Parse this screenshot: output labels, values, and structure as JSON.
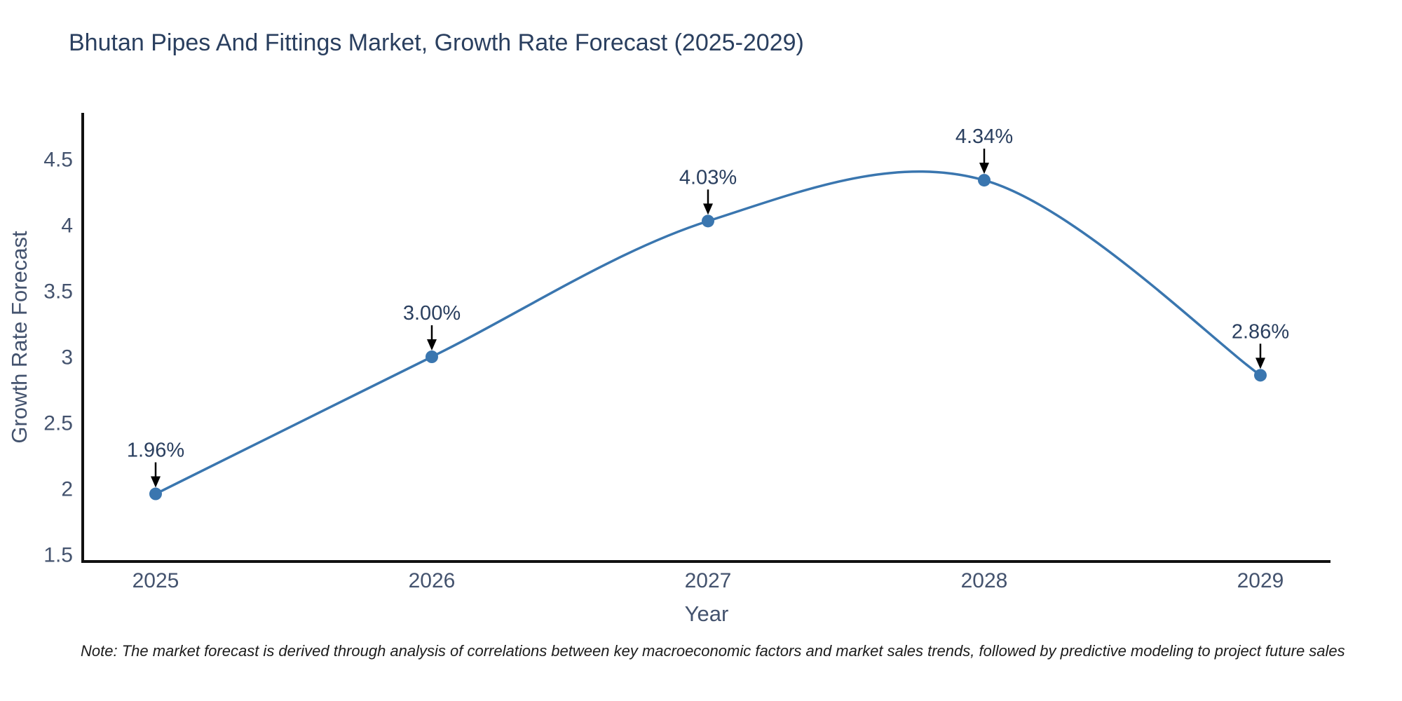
{
  "title": "Bhutan Pipes And Fittings Market, Growth Rate Forecast (2025-2029)",
  "note": "Note: The market forecast is derived through analysis of correlations between key macroeconomic factors and market sales trends, followed by predictive modeling to project future sales",
  "chart_data": {
    "type": "line",
    "line_shape": "spline",
    "title": "Bhutan Pipes And Fittings Market, Growth Rate Forecast (2025-2029)",
    "xlabel": "Year",
    "ylabel": "Growth Rate Forecast",
    "categories": [
      "2025",
      "2026",
      "2027",
      "2028",
      "2029"
    ],
    "values": [
      1.96,
      3.0,
      4.03,
      4.34,
      2.86
    ],
    "data_labels": [
      "1.96%",
      "3.00%",
      "4.03%",
      "4.34%",
      "2.86%"
    ],
    "yticks": [
      1.5,
      2,
      2.5,
      3,
      3.5,
      4,
      4.5
    ],
    "ylim": [
      1.45,
      4.85
    ],
    "grid": false,
    "legend": "none",
    "annotation_style": "black-down-arrow",
    "colors": {
      "line": "#3a76af",
      "marker": "#3a76af",
      "axis_line": "#111111",
      "annotation_arrow": "#000000",
      "title_text": "#2a3f5f",
      "tick_text": "#44536e",
      "note_text": "#1c1c1c"
    }
  }
}
